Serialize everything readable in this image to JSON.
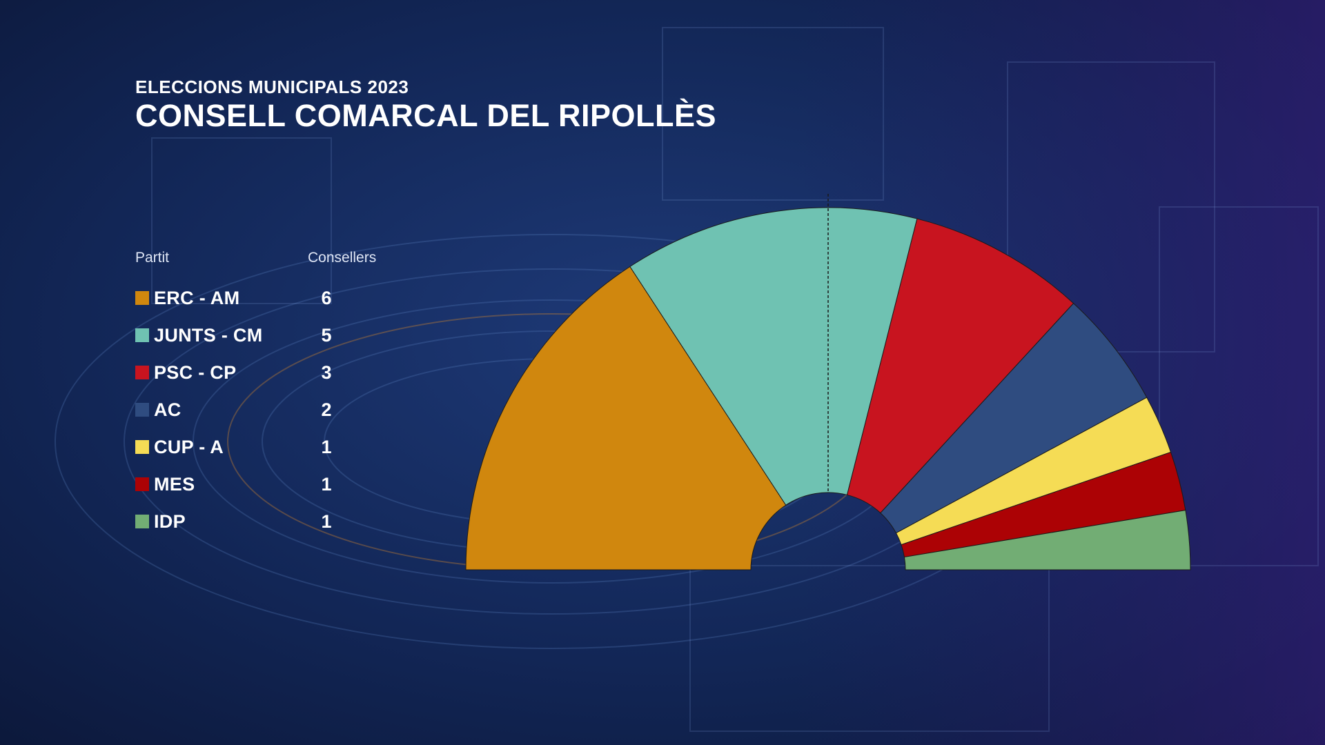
{
  "header": {
    "supertitle": "ELECCIONS MUNICIPALS 2023",
    "title": "CONSELL COMARCAL DEL RIPOLLÈS"
  },
  "legend": {
    "party_header": "Partit",
    "seats_header": "Consellers"
  },
  "colors": {
    "background_dark": "#0b1636",
    "background_accent": "#1e3a78",
    "majority_line": "#1a1a1a"
  },
  "chart_data": {
    "type": "pie",
    "subtype": "parliament-hemicycle",
    "title": "CONSELL COMARCAL DEL RIPOLLÈS",
    "subtitle": "ELECCIONS MUNICIPALS 2023",
    "total_seats": 19,
    "majority_marker": true,
    "parties": [
      {
        "name": "ERC - AM",
        "seats": 6,
        "color": "#d0870e"
      },
      {
        "name": "JUNTS - CM",
        "seats": 5,
        "color": "#6fc2b2"
      },
      {
        "name": "PSC - CP",
        "seats": 3,
        "color": "#c8141f"
      },
      {
        "name": "AC",
        "seats": 2,
        "color": "#2f4c80"
      },
      {
        "name": "CUP - A",
        "seats": 1,
        "color": "#f5dc55"
      },
      {
        "name": "MES",
        "seats": 1,
        "color": "#ac0205"
      },
      {
        "name": "IDP",
        "seats": 1,
        "color": "#72ad74"
      }
    ]
  }
}
